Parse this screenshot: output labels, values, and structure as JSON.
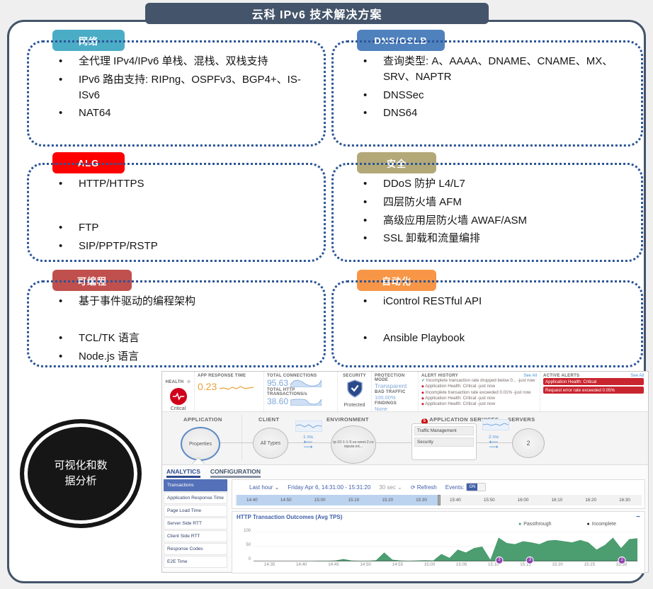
{
  "title": "云科 IPv6 技术解决方案",
  "colors": {
    "frame": "#44546A",
    "box_border": "#2B5597",
    "alert_red": "#C9252F",
    "chart_green": "#4C9D70",
    "value_blue": "#7DA7D8",
    "value_orange": "#E9A13B",
    "dashboard_accent": "#3F5FA8"
  },
  "boxes": [
    {
      "label": "网络",
      "color": "#4BACC6",
      "groups": [
        [
          "全代理 IPv4/IPv6 单栈、混栈、双栈支持"
        ],
        [
          "IPv6 路由支持: RIPng、OSPFv3、BGP4+、IS-ISv6",
          "NAT64"
        ]
      ]
    },
    {
      "label": "DNS/GSLB",
      "color": "#4F81BD",
      "groups": [
        [
          "查询类型: A、AAAA、DNAME、CNAME、MX、SRV、NAPTR"
        ],
        [
          "DNSSec"
        ],
        [
          "DNS64"
        ]
      ]
    },
    {
      "label": "ALG",
      "color": "#FF0000",
      "groups": [
        [
          "HTTP/HTTPS"
        ],
        [
          "FTP",
          "SIP/PPTP/RSTP"
        ]
      ]
    },
    {
      "label": "安全",
      "color": "#B3A878",
      "groups": [
        [
          "DDoS 防护 L4/L7"
        ],
        [
          "四层防火墙 AFM",
          "高级应用层防火墙 AWAF/ASM",
          "SSL 卸载和流量编排"
        ]
      ]
    },
    {
      "label": "可编程",
      "color": "#C0504D",
      "groups": [
        [
          "基于事件驱动的编程架构"
        ],
        [
          "TCL/TK 语言",
          "Node.js 语言"
        ]
      ]
    },
    {
      "label": "自动化",
      "color": "#F79646",
      "groups": [
        [
          "iControl RESTful API"
        ],
        [
          "Ansible Playbook"
        ]
      ]
    }
  ],
  "ellipse": {
    "label": "可视化和数据分析"
  },
  "dashboard": {
    "health": {
      "label": "HEALTH",
      "status": "Critical"
    },
    "metrics": {
      "app_response_time": {
        "label": "APP RESPONSE TIME",
        "value": "0.23"
      },
      "total_connections": {
        "label": "TOTAL CONNECTIONS",
        "value": "95.63"
      },
      "total_http_transactions": {
        "label": "TOTAL HTTP TRANSACTIONS/s",
        "value": "38.60"
      }
    },
    "security": {
      "label": "SECURITY",
      "status": "Protected"
    },
    "protection": {
      "mode_label": "PROTECTION MODE",
      "mode_value": "Transparent",
      "bad_traffic_label": "BAD TRAFFIC",
      "bad_traffic_value": "100.00%",
      "findings_label": "FINDINGS",
      "findings_value": "None"
    },
    "alert_history": {
      "label": "ALERT HISTORY",
      "see_all": "See All",
      "items": [
        {
          "icon": "check",
          "text": "Incomplete transaction rate dropped below 0... -just now"
        },
        {
          "icon": "alert",
          "text": "Application Health: Critical -just now"
        },
        {
          "icon": "alert",
          "text": "Incomplete transaction rate exceeded 0.01% -just now"
        },
        {
          "icon": "alert",
          "text": "Application Health: Critical -just now"
        },
        {
          "icon": "alert",
          "text": "Application Health: Critical -just now"
        }
      ]
    },
    "active_alerts": {
      "label": "ACTIVE ALERTS",
      "see_all": "See All",
      "items": [
        "Application Health: Critical",
        "Request error rate exceeded 0.05%"
      ]
    },
    "topology": {
      "sections": [
        "APPLICATION",
        "CLIENT",
        "ENVIRONMENT",
        "APPLICATION SERVICES",
        "SERVERS"
      ],
      "application_node": "Properties",
      "client_node": "All Types",
      "environment_node": "ip-10-1-1-9.us-west-2.compute.int...",
      "services": [
        "Traffic Management",
        "Security"
      ],
      "servers_node": "2",
      "latency_client": "1 ms",
      "latency_server": "2 ms"
    },
    "tabs": {
      "analytics": "ANALYTICS",
      "configuration": "CONFIGURATION"
    },
    "sidebar": [
      "Transactions",
      "Application Response Time",
      "Page Load Time",
      "Server Side RTT",
      "Client Side RTT",
      "Response Codes",
      "E2E Time"
    ],
    "timeline": {
      "range": "Last hour",
      "date_range": "Friday Apr 6, 14:31:00 - 15:31:20",
      "interval": "30 sec",
      "refresh": "Refresh",
      "events_label": "Events:",
      "events_state": "ON",
      "ticks": [
        "14:40",
        "14:50",
        "15:00",
        "15:10",
        "15:20",
        "15:30",
        "15:40",
        "15:50",
        "16:00",
        "16:10",
        "16:20",
        "16:30"
      ]
    }
  },
  "chart_data": {
    "type": "area",
    "title": "HTTP Transaction Outcomes (Avg TPS)",
    "xlabel": "",
    "ylabel": "",
    "ylim": [
      0,
      100
    ],
    "yticks": [
      0,
      50,
      100
    ],
    "xticks": [
      "14:35",
      "14:40",
      "14:45",
      "14:50",
      "14:55",
      "15:00",
      "15:05",
      "15:10",
      "15:15",
      "15:20",
      "15:25",
      "15:30"
    ],
    "x_range": [
      "14:32",
      "15:32"
    ],
    "legend": [
      {
        "name": "Passthrough",
        "color": "#3e9c6d"
      },
      {
        "name": "Incomplete",
        "color": "#222222"
      }
    ],
    "series": [
      {
        "name": "Passthrough",
        "values": [
          1,
          1,
          1,
          1,
          1,
          1,
          1,
          1,
          2,
          2,
          3,
          8,
          3,
          2,
          2,
          4,
          30,
          6,
          3,
          2,
          3,
          4,
          3,
          25,
          12,
          40,
          30,
          45,
          50,
          6,
          80,
          62,
          58,
          68,
          64,
          58,
          70,
          72,
          68,
          64,
          72,
          64,
          40,
          55,
          80,
          45,
          75,
          78
        ]
      },
      {
        "name": "Incomplete",
        "values": [
          0,
          0,
          0,
          0,
          0,
          0,
          0,
          0,
          0,
          0,
          0,
          0,
          0,
          0,
          0,
          0,
          0,
          0,
          0,
          0,
          0,
          0,
          0,
          0,
          0,
          0,
          0,
          0,
          0,
          0,
          0,
          0,
          0,
          0,
          0,
          0,
          0,
          0,
          0,
          0,
          0,
          0,
          0,
          0,
          0,
          0,
          0,
          0
        ]
      }
    ],
    "event_badges": [
      {
        "time": "15:11",
        "label": "3",
        "pos_pct": 64
      },
      {
        "time": "15:16",
        "label": "3",
        "pos_pct": 72
      },
      {
        "time": "15:30",
        "label": "2",
        "pos_pct": 96
      }
    ]
  }
}
